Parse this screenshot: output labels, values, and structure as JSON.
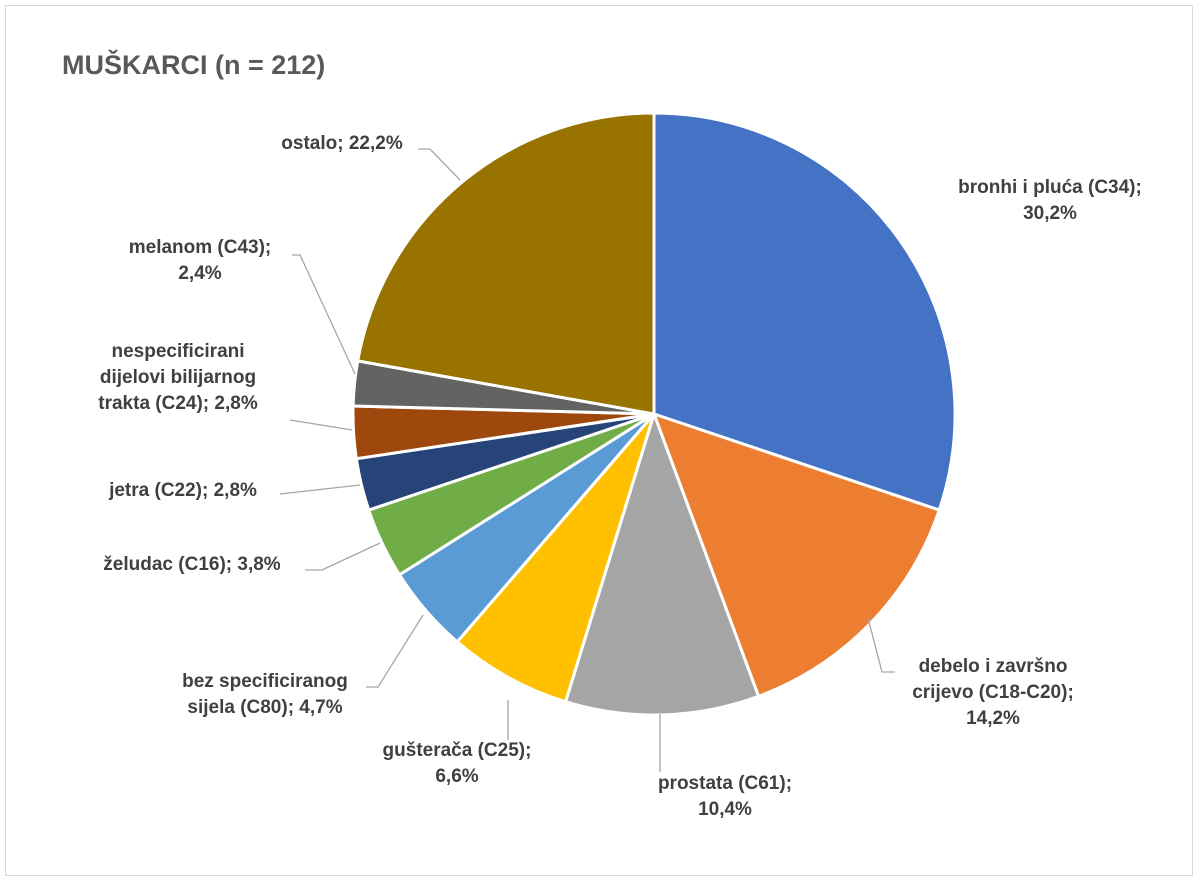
{
  "chart_data": {
    "type": "pie",
    "title": "MUŠKARCI (n = 212)",
    "slices": [
      {
        "label_lines": [
          "bronhi i pluća (C34);",
          "30,2%"
        ],
        "value": 30.2,
        "color": "#4472C4"
      },
      {
        "label_lines": [
          "debelo i završno",
          "crijevo (C18-C20);",
          "14,2%"
        ],
        "value": 14.2,
        "color": "#ED7D31"
      },
      {
        "label_lines": [
          "prostata (C61);",
          "10,4%"
        ],
        "value": 10.4,
        "color": "#A5A5A5"
      },
      {
        "label_lines": [
          "gušterača (C25);",
          "6,6%"
        ],
        "value": 6.6,
        "color": "#FFC000"
      },
      {
        "label_lines": [
          "bez specificiranog",
          "sijela (C80); 4,7%"
        ],
        "value": 4.7,
        "color": "#5B9BD5"
      },
      {
        "label_lines": [
          "želudac (C16); 3,8%"
        ],
        "value": 3.8,
        "color": "#70AD47"
      },
      {
        "label_lines": [
          "jetra (C22); 2,8%"
        ],
        "value": 2.8,
        "color": "#264478"
      },
      {
        "label_lines": [
          "nespecificirani",
          "dijelovi bilijarnog",
          "trakta (C24); 2,8%"
        ],
        "value": 2.8,
        "color": "#9E480E"
      },
      {
        "label_lines": [
          "melanom (C43);",
          "2,4%"
        ],
        "value": 2.4,
        "color": "#636363"
      },
      {
        "label_lines": [
          "ostalo; 22,2%"
        ],
        "value": 22.2,
        "color": "#997300"
      }
    ]
  }
}
